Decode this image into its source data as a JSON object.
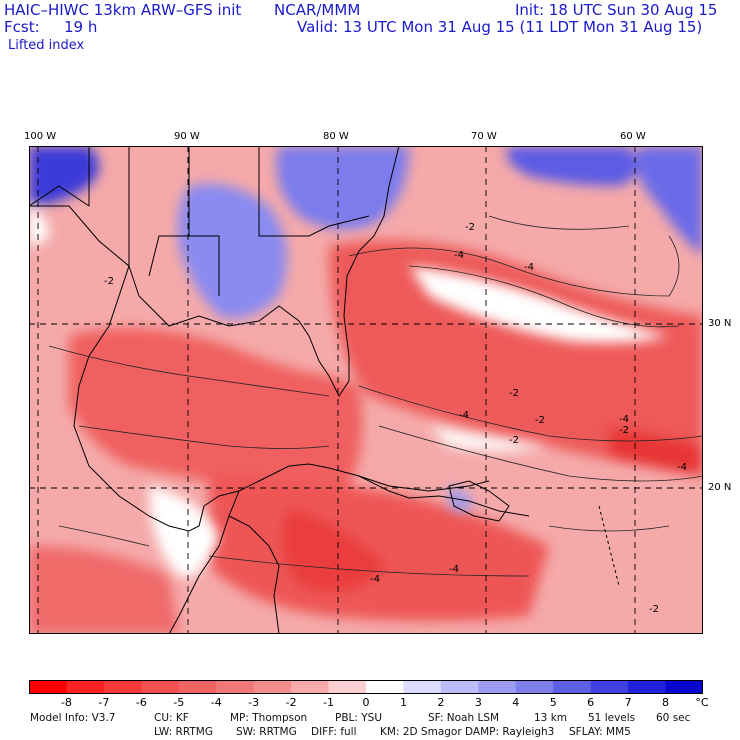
{
  "header": {
    "title": "HAIC–HIWC 13km ARW–GFS init",
    "org": "NCAR/MMM",
    "init": "Init: 18 UTC Sun 30 Aug 15",
    "fcst_label": "Fcst:",
    "fcst_value": "19 h",
    "valid": "Valid: 13 UTC Mon 31 Aug 15 (11 LDT Mon 31 Aug 15)",
    "field": "Lifted index"
  },
  "map": {
    "lon_labels": [
      "100 W",
      "90 W",
      "80 W",
      "70 W",
      "60 W"
    ],
    "lat_labels": [
      "30 N",
      "20 N"
    ],
    "contour_labels": [
      "-2",
      "-2",
      "-4",
      "-4",
      "-2",
      "-4",
      "-2",
      "-4",
      "-2",
      "-4",
      "-2",
      "-4",
      "-4",
      "-2"
    ],
    "colors": {
      "stable": "#2b2bd6",
      "unstable": "#e8283a",
      "neutral": "#ffffff"
    }
  },
  "colorbar": {
    "ticks": [
      "-8",
      "-7",
      "-6",
      "-5",
      "-4",
      "-3",
      "-2",
      "-1",
      "0",
      "1",
      "2",
      "3",
      "4",
      "5",
      "6",
      "7",
      "8"
    ],
    "unit": "°C",
    "colors": [
      "#ff0000",
      "#ff2222",
      "#f83a3a",
      "#f45050",
      "#f06464",
      "#f07878",
      "#f48e8e",
      "#f8aaaa",
      "#fcd0d0",
      "#ffffff",
      "#dcdcff",
      "#bcbcf8",
      "#9c9cf2",
      "#7e7eec",
      "#5f5fe6",
      "#4040e0",
      "#2222da",
      "#0808d0"
    ]
  },
  "model_info": {
    "line1": [
      "Model Info: V3.7",
      "CU: KF",
      "MP: Thompson",
      "PBL: YSU",
      "SF: Noah LSM",
      "13 km",
      "51 levels",
      "60 sec"
    ],
    "line2": [
      "LW: RRTMG",
      "SW: RRTMG",
      "DIFF: full",
      "KM: 2D Smagor",
      "DAMP: Rayleigh3",
      "SFLAY: MM5"
    ]
  }
}
